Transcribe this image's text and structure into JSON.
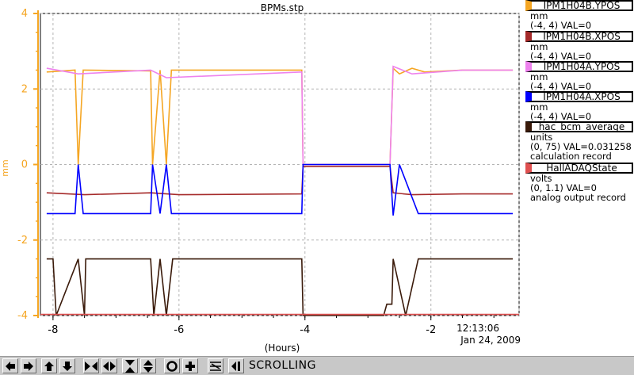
{
  "chart_data": {
    "type": "line",
    "title": "BPMs.stp",
    "xlabel": "(Hours)",
    "ylabel": "mm",
    "xlim": [
      -8.2,
      -0.6
    ],
    "ylim": [
      -4,
      4
    ],
    "x_ticks": [
      "-8",
      "-6",
      "-4",
      "-2"
    ],
    "y_ticks": [
      "4",
      "2",
      "0",
      "-2",
      "-4"
    ],
    "time_label": "12:13:06",
    "date_label": "Jan 24, 2009",
    "grid": true,
    "legend_placement": "right",
    "series": [
      {
        "name": "IPM1H04B.YPOS",
        "color": "#f5a623",
        "x": [
          -8.1,
          -7.65,
          -7.6,
          -7.52,
          -7.5,
          -6.45,
          -6.42,
          -6.3,
          -6.2,
          -6.12,
          -6.05,
          -4.05,
          -4.03,
          -2.65,
          -2.6,
          -2.5,
          -2.3,
          -2.1,
          -1.5,
          -0.7
        ],
        "y": [
          2.45,
          2.5,
          0,
          2.5,
          2.5,
          2.48,
          0,
          2.5,
          0,
          2.5,
          2.5,
          2.5,
          0,
          0,
          2.55,
          2.4,
          2.55,
          2.45,
          2.5,
          2.5
        ]
      },
      {
        "name": "IPM1H04B.XPOS",
        "color": "#a52a2a",
        "x": [
          -8.1,
          -7.5,
          -6.45,
          -6.0,
          -4.05,
          -4.03,
          -2.65,
          -2.6,
          -2.3,
          -1.5,
          -0.7
        ],
        "y": [
          -0.75,
          -0.8,
          -0.75,
          -0.8,
          -0.78,
          -0.05,
          -0.05,
          -0.75,
          -0.8,
          -0.78,
          -0.78
        ]
      },
      {
        "name": "IPM1H04A.YPOS",
        "color": "#ee82ee",
        "x": [
          -8.1,
          -7.6,
          -6.45,
          -6.2,
          -4.05,
          -4.03,
          -2.65,
          -2.6,
          -2.3,
          -1.5,
          -0.7
        ],
        "y": [
          2.55,
          2.4,
          2.5,
          2.3,
          2.45,
          0,
          0,
          2.6,
          2.4,
          2.5,
          2.5
        ]
      },
      {
        "name": "IPM1H04A.XPOS",
        "color": "#0000ff",
        "x": [
          -8.1,
          -7.65,
          -7.6,
          -7.52,
          -6.45,
          -6.42,
          -6.3,
          -6.2,
          -6.12,
          -4.05,
          -4.03,
          -2.65,
          -2.6,
          -2.5,
          -2.2,
          -1.5,
          -0.7
        ],
        "y": [
          -1.3,
          -1.3,
          0,
          -1.3,
          -1.3,
          0,
          -1.3,
          0,
          -1.3,
          -1.3,
          0,
          0,
          -1.35,
          0,
          -1.3,
          -1.3,
          -1.3
        ]
      },
      {
        "name": "hac_bcm_average",
        "color": "#3a1a0a",
        "x": [
          -8.1,
          -8.0,
          -7.95,
          -7.6,
          -7.5,
          -7.48,
          -6.45,
          -6.4,
          -6.3,
          -6.2,
          -6.1,
          -4.05,
          -4.03,
          -2.75,
          -2.7,
          -2.62,
          -2.6,
          -2.4,
          -2.2,
          -1.5,
          -0.7
        ],
        "y": [
          -2.5,
          -2.5,
          -4,
          -2.5,
          -4,
          -2.5,
          -2.5,
          -4,
          -2.5,
          -4,
          -2.5,
          -2.5,
          -4,
          -4,
          -3.7,
          -3.7,
          -2.5,
          -4,
          -2.5,
          -2.5,
          -2.5
        ]
      },
      {
        "name": "HallADAQState",
        "color": "#e05050",
        "x": [
          -8.2,
          -0.6
        ],
        "y": [
          -3.97,
          -3.97
        ]
      }
    ]
  },
  "legend": [
    {
      "name": "IPM1H04B.YPOS",
      "color": "#f5a623",
      "lines": [
        "mm",
        "(-4, 4) VAL=0"
      ]
    },
    {
      "name": "IPM1H04B.XPOS",
      "color": "#a52a2a",
      "lines": [
        "mm",
        "(-4, 4) VAL=0"
      ]
    },
    {
      "name": "IPM1H04A.YPOS",
      "color": "#ee82ee",
      "lines": [
        "mm",
        "(-4, 4) VAL=0"
      ]
    },
    {
      "name": "IPM1H04A.XPOS",
      "color": "#0000ff",
      "lines": [
        "mm",
        "(-4, 4) VAL=0"
      ]
    },
    {
      "name": "hac_bcm_average",
      "color": "#3a1a0a",
      "lines": [
        "units",
        "(0, 75) VAL=0.031258",
        "calculation record"
      ]
    },
    {
      "name": "HallADAQState",
      "color": "#e05050",
      "lines": [
        "volts",
        "(0, 1.1) VAL=0",
        "analog output record"
      ]
    }
  ],
  "toolbar": {
    "status": "SCROLLING",
    "buttons": [
      "pan-left-icon",
      "pan-right-icon",
      "pan-up-icon",
      "pan-down-icon",
      "zoom-in-x-icon",
      "zoom-out-x-icon",
      "zoom-in-y-icon",
      "zoom-out-y-icon",
      "autoscale-icon",
      "zoom-in-icon",
      "toggle-grid-icon",
      "scroll-icon"
    ]
  },
  "colors": {
    "axis": "#f5a623",
    "grid": "#b4b4b4",
    "toolbar": "#c8c8c8"
  }
}
